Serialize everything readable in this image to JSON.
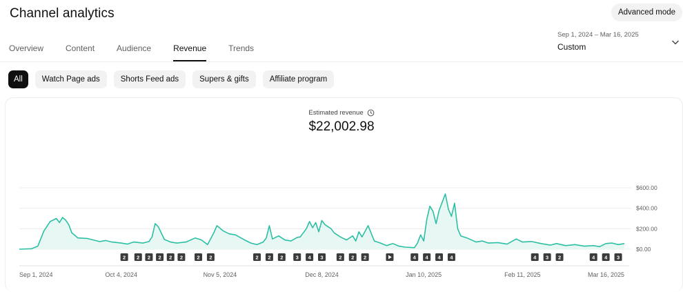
{
  "header": {
    "title": "Channel analytics",
    "advanced_mode_label": "Advanced mode"
  },
  "tabs": [
    {
      "label": "Overview",
      "active": false
    },
    {
      "label": "Content",
      "active": false
    },
    {
      "label": "Audience",
      "active": false
    },
    {
      "label": "Revenue",
      "active": true
    },
    {
      "label": "Trends",
      "active": false
    }
  ],
  "date_range": {
    "range": "Sep 1, 2024 – Mar 16, 2025",
    "label": "Custom",
    "icon": "chevron-down-icon"
  },
  "chips": [
    {
      "label": "All",
      "active": true
    },
    {
      "label": "Watch Page ads",
      "active": false
    },
    {
      "label": "Shorts Feed ads",
      "active": false
    },
    {
      "label": "Supers & gifts",
      "active": false
    },
    {
      "label": "Affiliate program",
      "active": false
    }
  ],
  "metric": {
    "label": "Estimated revenue",
    "icon": "clock-icon",
    "value": "$22,002.98"
  },
  "colors": {
    "line": "#2bbfa4",
    "fill": "#e7f7f3",
    "marker": "#3b3b3b",
    "active_chip": "#0f0f0f"
  },
  "chart_data": {
    "type": "area",
    "y_ticks": [
      "$600.00",
      "$400.00",
      "$200.00",
      "$0.00"
    ],
    "y_tick_values": [
      600,
      400,
      200,
      0
    ],
    "ylim": [
      0,
      600
    ],
    "x_tick_labels": [
      "Sep 1, 2024",
      "Oct 4, 2024",
      "Nov 5, 2024",
      "Dec 8, 2024",
      "Jan 10, 2025",
      "Feb 11, 2025",
      "Mar 16, 2025"
    ],
    "x_tick_days": [
      0,
      33,
      65,
      98,
      131,
      163,
      196
    ],
    "x_start_label": "Sep 1, 2024",
    "series": [
      {
        "values": [
          [
            0,
            0
          ],
          [
            4,
            5
          ],
          [
            6,
            30
          ],
          [
            8,
            180
          ],
          [
            10,
            270
          ],
          [
            12,
            300
          ],
          [
            13,
            260
          ],
          [
            14,
            310
          ],
          [
            15,
            285
          ],
          [
            16,
            240
          ],
          [
            17,
            160
          ],
          [
            19,
            110
          ],
          [
            22,
            105
          ],
          [
            24,
            90
          ],
          [
            26,
            75
          ],
          [
            28,
            85
          ],
          [
            30,
            70
          ],
          [
            33,
            60
          ],
          [
            35,
            50
          ],
          [
            37,
            70
          ],
          [
            40,
            60
          ],
          [
            42,
            75
          ],
          [
            43,
            120
          ],
          [
            44,
            250
          ],
          [
            45,
            220
          ],
          [
            47,
            95
          ],
          [
            49,
            70
          ],
          [
            51,
            60
          ],
          [
            54,
            70
          ],
          [
            57,
            110
          ],
          [
            59,
            90
          ],
          [
            61,
            45
          ],
          [
            63,
            160
          ],
          [
            64,
            230
          ],
          [
            66,
            180
          ],
          [
            68,
            150
          ],
          [
            70,
            140
          ],
          [
            73,
            90
          ],
          [
            75,
            60
          ],
          [
            77,
            45
          ],
          [
            79,
            70
          ],
          [
            80,
            110
          ],
          [
            81,
            230
          ],
          [
            82,
            100
          ],
          [
            84,
            130
          ],
          [
            86,
            90
          ],
          [
            88,
            80
          ],
          [
            90,
            115
          ],
          [
            91,
            120
          ],
          [
            93,
            200
          ],
          [
            94,
            270
          ],
          [
            95,
            210
          ],
          [
            96,
            260
          ],
          [
            97,
            170
          ],
          [
            98,
            280
          ],
          [
            99,
            240
          ],
          [
            101,
            200
          ],
          [
            102,
            160
          ],
          [
            104,
            120
          ],
          [
            106,
            90
          ],
          [
            108,
            130
          ],
          [
            109,
            80
          ],
          [
            110,
            170
          ],
          [
            111,
            120
          ],
          [
            113,
            230
          ],
          [
            115,
            80
          ],
          [
            117,
            60
          ],
          [
            119,
            35
          ],
          [
            121,
            55
          ],
          [
            123,
            30
          ],
          [
            125,
            20
          ],
          [
            128,
            15
          ],
          [
            129,
            60
          ],
          [
            130,
            140
          ],
          [
            131,
            80
          ],
          [
            132,
            290
          ],
          [
            133,
            420
          ],
          [
            134,
            370
          ],
          [
            135,
            250
          ],
          [
            136,
            380
          ],
          [
            137,
            460
          ],
          [
            138,
            540
          ],
          [
            139,
            390
          ],
          [
            140,
            320
          ],
          [
            141,
            450
          ],
          [
            142,
            200
          ],
          [
            143,
            130
          ],
          [
            145,
            110
          ],
          [
            148,
            70
          ],
          [
            150,
            80
          ],
          [
            152,
            60
          ],
          [
            155,
            65
          ],
          [
            158,
            50
          ],
          [
            161,
            100
          ],
          [
            163,
            70
          ],
          [
            166,
            75
          ],
          [
            169,
            55
          ],
          [
            172,
            40
          ],
          [
            174,
            55
          ],
          [
            177,
            35
          ],
          [
            180,
            45
          ],
          [
            183,
            30
          ],
          [
            186,
            35
          ],
          [
            188,
            25
          ],
          [
            190,
            55
          ],
          [
            192,
            60
          ],
          [
            194,
            45
          ],
          [
            196,
            55
          ]
        ]
      }
    ],
    "annotation_markers": [
      {
        "day": 34,
        "label": "2"
      },
      {
        "day": 38.5,
        "label": "2"
      },
      {
        "day": 42,
        "label": "2"
      },
      {
        "day": 45.5,
        "label": "2"
      },
      {
        "day": 49,
        "label": "2"
      },
      {
        "day": 52.5,
        "label": "2"
      },
      {
        "day": 58,
        "label": "2"
      },
      {
        "day": 62,
        "label": "2"
      },
      {
        "day": 77,
        "label": "2"
      },
      {
        "day": 81,
        "label": "2"
      },
      {
        "day": 85,
        "label": "2"
      },
      {
        "day": 90,
        "label": "3"
      },
      {
        "day": 94,
        "label": "4"
      },
      {
        "day": 98,
        "label": "3"
      },
      {
        "day": 104,
        "label": "2"
      },
      {
        "day": 108,
        "label": "2"
      },
      {
        "day": 112,
        "label": "2"
      },
      {
        "day": 120,
        "label": "play"
      },
      {
        "day": 128,
        "label": "4"
      },
      {
        "day": 132,
        "label": "4"
      },
      {
        "day": 136,
        "label": "4"
      },
      {
        "day": 140,
        "label": "4"
      },
      {
        "day": 167,
        "label": "4"
      },
      {
        "day": 171,
        "label": "3"
      },
      {
        "day": 175,
        "label": "2"
      },
      {
        "day": 186,
        "label": "4"
      },
      {
        "day": 190,
        "label": "4"
      },
      {
        "day": 194,
        "label": "3"
      }
    ],
    "grid": true
  }
}
